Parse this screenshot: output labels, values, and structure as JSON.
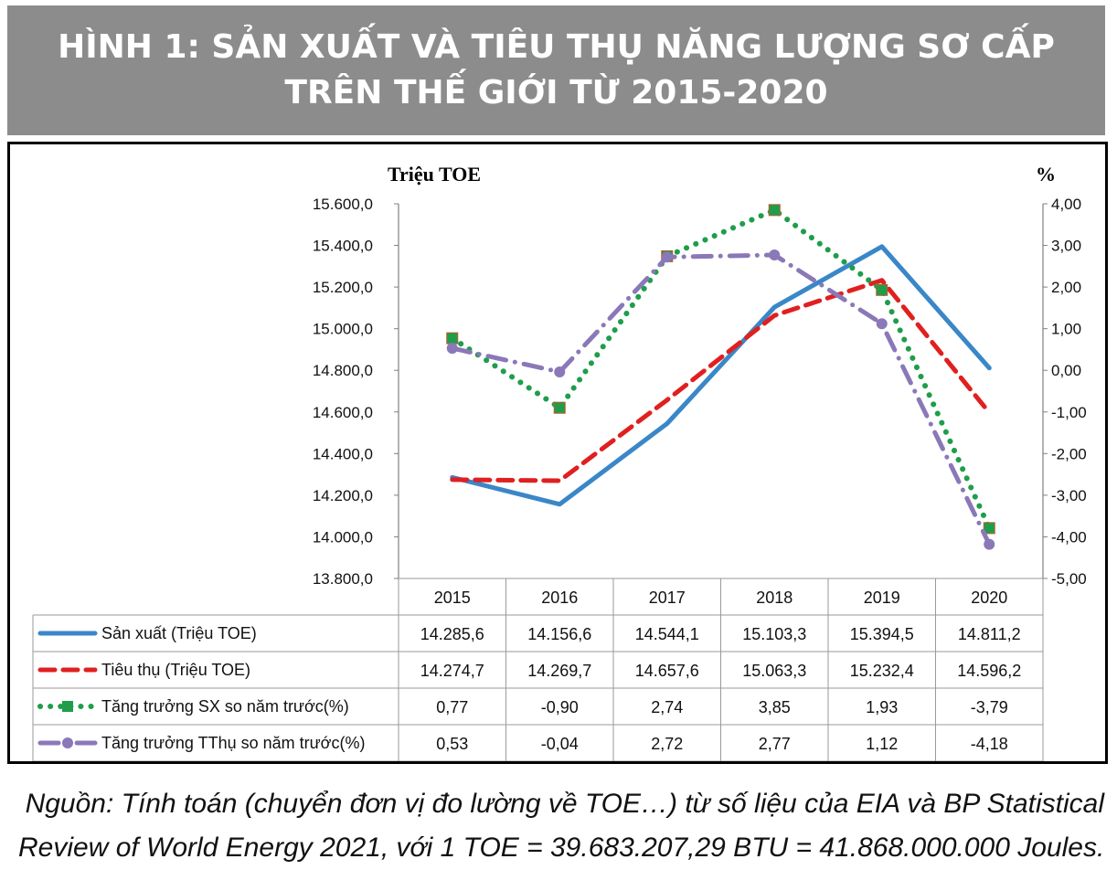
{
  "header": {
    "title_line1": "HÌNH 1: SẢN XUẤT VÀ TIÊU THỤ NĂNG LƯỢNG SƠ CẤP",
    "title_line2": "TRÊN THẾ GIỚI TỪ 2015-2020"
  },
  "chart_data": {
    "type": "line",
    "left_axis_label": "Triệu TOE",
    "right_axis_label": "%",
    "left_ticks": [
      "15.600,0",
      "15.400,0",
      "15.200,0",
      "15.000,0",
      "14.800,0",
      "14.600,0",
      "14.400,0",
      "14.200,0",
      "14.000,0",
      "13.800,0"
    ],
    "right_ticks": [
      "4,00",
      "3,00",
      "2,00",
      "1,00",
      "0,00",
      "-1,00",
      "-2,00",
      "-3,00",
      "-4,00",
      "-5,00"
    ],
    "left_ylim": [
      13800,
      15600
    ],
    "right_ylim": [
      -5,
      4
    ],
    "categories": [
      "2015",
      "2016",
      "2017",
      "2018",
      "2019",
      "2020"
    ],
    "series": [
      {
        "name": "Sản xuất (Triệu TOE)",
        "axis": "left",
        "style": "solid",
        "color": "#3a87c8",
        "marker": "none",
        "values": [
          14285.6,
          14156.6,
          14544.1,
          15103.3,
          15394.5,
          14811.2
        ],
        "labels": [
          "14.285,6",
          "14.156,6",
          "14.544,1",
          "15.103,3",
          "15.394,5",
          "14.811,2"
        ]
      },
      {
        "name": "Tiêu thụ (Triệu TOE)",
        "axis": "left",
        "style": "dashed",
        "color": "#e02020",
        "marker": "none",
        "values": [
          14274.7,
          14269.7,
          14657.6,
          15063.3,
          15232.4,
          14596.2
        ],
        "labels": [
          "14.274,7",
          "14.269,7",
          "14.657,6",
          "15.063,3",
          "15.232,4",
          "14.596,2"
        ]
      },
      {
        "name": "Tăng trưởng SX so năm trước(%)",
        "axis": "right",
        "style": "dotted",
        "color": "#1e9e4a",
        "marker": "square",
        "values": [
          0.77,
          -0.9,
          2.74,
          3.85,
          1.93,
          -3.79
        ],
        "labels": [
          "0,77",
          "-0,90",
          "2,74",
          "3,85",
          "1,93",
          "-3,79"
        ]
      },
      {
        "name": "Tăng trưởng TThụ  so năm trước(%)",
        "axis": "right",
        "style": "dashdot",
        "color": "#8a78b8",
        "marker": "circle",
        "values": [
          0.53,
          -0.04,
          2.72,
          2.77,
          1.12,
          -4.18
        ],
        "labels": [
          "0,53",
          "-0,04",
          "2,72",
          "2,77",
          "1,12",
          "-4,18"
        ]
      }
    ],
    "grid": false,
    "legend": "data table below chart"
  },
  "source": {
    "line1": "Nguồn: Tính toán (chuyển đơn vị đo lường về TOE…) từ số liệu của EIA và BP Statistical",
    "line2": "Review of World Energy 2021, với 1 TOE = 39.683.207,29 BTU = 41.868.000.000 Joules."
  }
}
